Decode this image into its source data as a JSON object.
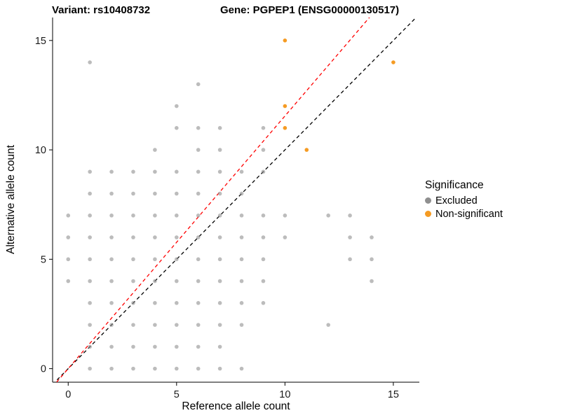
{
  "titles": {
    "left": "Variant: rs10408732",
    "right": "Gene: PGPEP1 (ENSG00000130517)"
  },
  "axes": {
    "x_label": "Reference allele count",
    "y_label": "Alternative allele count"
  },
  "legend": {
    "title": "Significance",
    "items": [
      {
        "label": "Excluded",
        "color": "#8f8f8f"
      },
      {
        "label": "Non-significant",
        "color": "#F59B23"
      }
    ]
  },
  "chart_data": {
    "type": "scatter",
    "title": "Variant: rs10408732 — Gene: PGPEP1 (ENSG00000130517)",
    "xlabel": "Reference allele count",
    "ylabel": "Alternative allele count",
    "x_ticks": [
      0,
      5,
      10,
      15
    ],
    "y_ticks": [
      0,
      5,
      10,
      15
    ],
    "x_domain": [
      -0.72,
      16.2
    ],
    "y_domain": [
      -0.62,
      16.05
    ],
    "grid": false,
    "legend_position": "right",
    "point_radius": 2.8,
    "series": [
      {
        "name": "Excluded",
        "color": "#8f8f8f",
        "opacity": 0.6,
        "points": [
          [
            1,
            14
          ],
          [
            6,
            13
          ],
          [
            5,
            12
          ],
          [
            5,
            11
          ],
          [
            6,
            11
          ],
          [
            7,
            11
          ],
          [
            9,
            11
          ],
          [
            4,
            10
          ],
          [
            6,
            10
          ],
          [
            7,
            10
          ],
          [
            9,
            10
          ],
          [
            1,
            9
          ],
          [
            2,
            9
          ],
          [
            3,
            9
          ],
          [
            4,
            9
          ],
          [
            5,
            9
          ],
          [
            6,
            9
          ],
          [
            7,
            9
          ],
          [
            8,
            9
          ],
          [
            9,
            9
          ],
          [
            1,
            8
          ],
          [
            2,
            8
          ],
          [
            3,
            8
          ],
          [
            4,
            8
          ],
          [
            5,
            8
          ],
          [
            6,
            8
          ],
          [
            7,
            8
          ],
          [
            8,
            8
          ],
          [
            0,
            7
          ],
          [
            1,
            7
          ],
          [
            2,
            7
          ],
          [
            3,
            7
          ],
          [
            4,
            7
          ],
          [
            5,
            7
          ],
          [
            6,
            7
          ],
          [
            7,
            7
          ],
          [
            8,
            7
          ],
          [
            9,
            7
          ],
          [
            10,
            7
          ],
          [
            12,
            7
          ],
          [
            13,
            7
          ],
          [
            0,
            6
          ],
          [
            1,
            6
          ],
          [
            2,
            6
          ],
          [
            3,
            6
          ],
          [
            4,
            6
          ],
          [
            5,
            6
          ],
          [
            6,
            6
          ],
          [
            7,
            6
          ],
          [
            8,
            6
          ],
          [
            9,
            6
          ],
          [
            10,
            6
          ],
          [
            13,
            6
          ],
          [
            14,
            6
          ],
          [
            0,
            5
          ],
          [
            1,
            5
          ],
          [
            2,
            5
          ],
          [
            3,
            5
          ],
          [
            4,
            5
          ],
          [
            5,
            5
          ],
          [
            6,
            5
          ],
          [
            7,
            5
          ],
          [
            8,
            5
          ],
          [
            9,
            5
          ],
          [
            13,
            5
          ],
          [
            14,
            5
          ],
          [
            0,
            4
          ],
          [
            1,
            4
          ],
          [
            2,
            4
          ],
          [
            3,
            4
          ],
          [
            4,
            4
          ],
          [
            5,
            4
          ],
          [
            6,
            4
          ],
          [
            7,
            4
          ],
          [
            8,
            4
          ],
          [
            9,
            4
          ],
          [
            14,
            4
          ],
          [
            1,
            3
          ],
          [
            2,
            3
          ],
          [
            3,
            3
          ],
          [
            4,
            3
          ],
          [
            5,
            3
          ],
          [
            6,
            3
          ],
          [
            7,
            3
          ],
          [
            8,
            3
          ],
          [
            9,
            3
          ],
          [
            1,
            2
          ],
          [
            2,
            2
          ],
          [
            3,
            2
          ],
          [
            4,
            2
          ],
          [
            5,
            2
          ],
          [
            6,
            2
          ],
          [
            7,
            2
          ],
          [
            8,
            2
          ],
          [
            12,
            2
          ],
          [
            1,
            1
          ],
          [
            2,
            1
          ],
          [
            3,
            1
          ],
          [
            4,
            1
          ],
          [
            5,
            1
          ],
          [
            6,
            1
          ],
          [
            7,
            1
          ],
          [
            1,
            0
          ],
          [
            2,
            0
          ],
          [
            3,
            0
          ],
          [
            4,
            0
          ],
          [
            5,
            0
          ],
          [
            6,
            0
          ],
          [
            7,
            0
          ],
          [
            8,
            0
          ]
        ]
      },
      {
        "name": "Non-significant",
        "color": "#F59B23",
        "opacity": 1,
        "points": [
          [
            10,
            15
          ],
          [
            10,
            12
          ],
          [
            10,
            11
          ],
          [
            11,
            10
          ],
          [
            15,
            14
          ]
        ]
      }
    ],
    "lines": [
      {
        "name": "identity-line",
        "color": "#000000",
        "slope": 1.0,
        "intercept": 0,
        "dash": "5 4"
      },
      {
        "name": "fit-line",
        "color": "#FF0000",
        "slope": 1.155,
        "intercept": 0,
        "dash": "5 4"
      }
    ]
  }
}
